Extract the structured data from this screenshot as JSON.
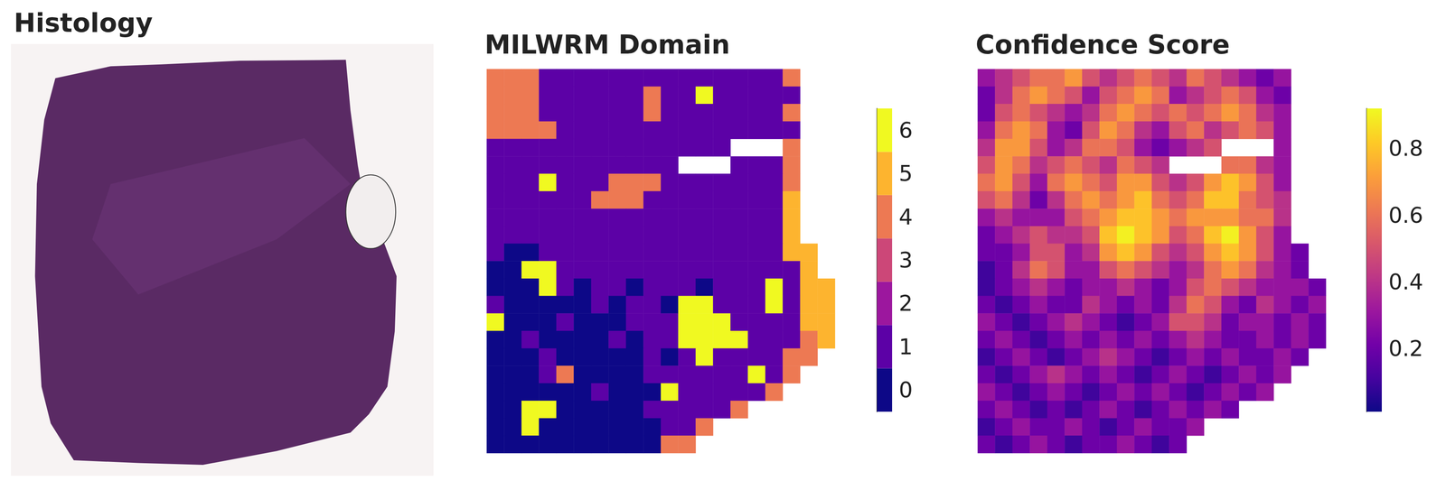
{
  "chart_data": [
    {
      "type": "image",
      "title": "Histology"
    },
    {
      "type": "heatmap",
      "title": "MILWRM Domain",
      "colors": [
        "#0d0887",
        "#5c01a6",
        "#9c179e",
        "#cc4778",
        "#ed7953",
        "#fdb42f",
        "#f0f921"
      ],
      "colorbar": {
        "range": [
          -0.5,
          6.5
        ],
        "ticks": [
          0,
          1,
          2,
          3,
          4,
          5,
          6
        ]
      },
      "cells": [
        [
          4,
          4,
          4,
          1,
          1,
          1,
          1,
          1,
          1,
          1,
          1,
          1,
          1,
          1,
          1,
          1,
          1,
          4,
          null,
          null
        ],
        [
          4,
          4,
          4,
          1,
          1,
          1,
          1,
          1,
          1,
          4,
          1,
          1,
          6,
          1,
          1,
          1,
          1,
          1,
          null,
          null
        ],
        [
          4,
          4,
          4,
          1,
          1,
          1,
          1,
          1,
          1,
          4,
          1,
          1,
          1,
          1,
          1,
          1,
          1,
          4,
          null,
          null
        ],
        [
          4,
          4,
          4,
          4,
          1,
          1,
          1,
          1,
          1,
          1,
          1,
          1,
          1,
          1,
          1,
          1,
          1,
          1,
          null,
          null
        ],
        [
          1,
          1,
          1,
          1,
          1,
          1,
          1,
          1,
          1,
          1,
          1,
          1,
          1,
          1,
          null,
          null,
          null,
          4,
          null,
          null
        ],
        [
          1,
          1,
          1,
          1,
          1,
          1,
          1,
          1,
          1,
          1,
          1,
          null,
          null,
          null,
          1,
          1,
          1,
          4,
          null,
          null
        ],
        [
          1,
          1,
          1,
          6,
          1,
          1,
          1,
          4,
          4,
          4,
          1,
          1,
          1,
          1,
          1,
          1,
          1,
          4,
          null,
          null
        ],
        [
          1,
          1,
          1,
          1,
          1,
          1,
          4,
          4,
          4,
          1,
          1,
          1,
          1,
          1,
          1,
          1,
          1,
          5,
          null,
          null
        ],
        [
          1,
          1,
          1,
          1,
          1,
          1,
          1,
          1,
          1,
          1,
          1,
          1,
          1,
          1,
          1,
          1,
          1,
          5,
          null,
          null
        ],
        [
          1,
          1,
          1,
          1,
          1,
          1,
          1,
          1,
          1,
          1,
          1,
          1,
          1,
          1,
          1,
          1,
          1,
          5,
          null,
          null
        ],
        [
          1,
          0,
          0,
          1,
          1,
          1,
          1,
          1,
          1,
          1,
          1,
          1,
          1,
          1,
          1,
          1,
          1,
          5,
          5,
          null
        ],
        [
          0,
          0,
          6,
          6,
          1,
          1,
          1,
          1,
          1,
          1,
          1,
          1,
          1,
          1,
          1,
          1,
          1,
          1,
          5,
          null
        ],
        [
          0,
          0,
          0,
          6,
          1,
          0,
          1,
          1,
          0,
          1,
          1,
          1,
          0,
          1,
          1,
          1,
          6,
          1,
          5,
          5
        ],
        [
          1,
          0,
          0,
          0,
          0,
          0,
          1,
          0,
          1,
          1,
          0,
          6,
          6,
          1,
          1,
          1,
          6,
          1,
          5,
          5
        ],
        [
          6,
          0,
          0,
          0,
          1,
          0,
          0,
          0,
          1,
          1,
          1,
          6,
          6,
          6,
          1,
          1,
          1,
          1,
          5,
          5
        ],
        [
          0,
          0,
          1,
          0,
          0,
          0,
          0,
          1,
          0,
          1,
          1,
          6,
          6,
          6,
          6,
          1,
          1,
          1,
          4,
          5
        ],
        [
          0,
          0,
          0,
          1,
          0,
          0,
          0,
          0,
          0,
          1,
          0,
          1,
          6,
          1,
          1,
          1,
          1,
          4,
          4,
          null
        ],
        [
          0,
          0,
          0,
          1,
          4,
          0,
          0,
          0,
          0,
          1,
          1,
          1,
          1,
          1,
          1,
          6,
          1,
          4,
          null,
          null
        ],
        [
          0,
          0,
          0,
          0,
          0,
          0,
          1,
          0,
          0,
          0,
          6,
          1,
          1,
          1,
          1,
          1,
          4,
          null,
          null,
          null
        ],
        [
          0,
          0,
          6,
          6,
          0,
          0,
          0,
          0,
          0,
          1,
          1,
          1,
          1,
          1,
          4,
          null,
          null,
          null,
          null,
          null
        ],
        [
          0,
          0,
          6,
          0,
          0,
          0,
          0,
          0,
          0,
          0,
          1,
          1,
          4,
          null,
          null,
          null,
          null,
          null,
          null,
          null
        ],
        [
          0,
          0,
          0,
          0,
          0,
          0,
          0,
          0,
          0,
          0,
          4,
          4,
          null,
          null,
          null,
          null,
          null,
          null,
          null,
          null
        ]
      ]
    },
    {
      "type": "heatmap",
      "title": "Confidence Score",
      "color": "plasma",
      "colorbar": {
        "range": [
          0.01,
          0.92
        ],
        "ticks": [
          0.2,
          0.4,
          0.6,
          0.8
        ]
      },
      "cells": [
        [
          0.3,
          0.4,
          0.5,
          0.6,
          0.6,
          0.7,
          0.5,
          0.4,
          0.5,
          0.6,
          0.5,
          0.4,
          0.6,
          0.5,
          0.4,
          0.3,
          0.2,
          0.3,
          null,
          null
        ],
        [
          0.2,
          0.4,
          0.6,
          0.7,
          0.6,
          0.5,
          0.3,
          0.5,
          0.6,
          0.7,
          0.6,
          0.3,
          0.4,
          0.5,
          0.6,
          0.5,
          0.3,
          0.2,
          null,
          null
        ],
        [
          0.2,
          0.5,
          0.6,
          0.5,
          0.4,
          0.3,
          0.4,
          0.6,
          0.7,
          0.6,
          0.5,
          0.6,
          0.5,
          0.6,
          0.7,
          0.6,
          0.4,
          0.3,
          null,
          null
        ],
        [
          0.3,
          0.6,
          0.7,
          0.6,
          0.3,
          0.2,
          0.5,
          0.7,
          0.6,
          0.4,
          0.3,
          0.5,
          0.6,
          0.4,
          0.5,
          0.6,
          0.5,
          0.3,
          null,
          null
        ],
        [
          0.4,
          0.7,
          0.7,
          0.5,
          0.3,
          0.4,
          0.6,
          0.6,
          0.5,
          0.3,
          0.2,
          0.3,
          0.4,
          0.5,
          null,
          null,
          null,
          0.3,
          null,
          null
        ],
        [
          0.5,
          0.7,
          0.6,
          0.4,
          0.5,
          0.6,
          0.5,
          0.4,
          0.6,
          0.5,
          0.4,
          null,
          null,
          null,
          0.6,
          0.6,
          0.4,
          0.3,
          null,
          null
        ],
        [
          0.6,
          0.7,
          0.5,
          0.3,
          0.6,
          0.7,
          0.6,
          0.5,
          0.7,
          0.7,
          0.5,
          0.4,
          0.5,
          0.7,
          0.8,
          0.7,
          0.5,
          0.3,
          null,
          null
        ],
        [
          0.5,
          0.6,
          0.4,
          0.2,
          0.4,
          0.6,
          0.7,
          0.6,
          0.7,
          0.8,
          0.6,
          0.5,
          0.6,
          0.8,
          0.8,
          0.6,
          0.5,
          0.4,
          null,
          null
        ],
        [
          0.3,
          0.4,
          0.3,
          0.3,
          0.3,
          0.5,
          0.6,
          0.7,
          0.8,
          0.8,
          0.7,
          0.6,
          0.7,
          0.7,
          0.7,
          0.6,
          0.6,
          0.4,
          null,
          null
        ],
        [
          0.2,
          0.3,
          0.4,
          0.5,
          0.4,
          0.4,
          0.5,
          0.8,
          0.9,
          0.8,
          0.7,
          0.5,
          0.6,
          0.8,
          0.9,
          0.7,
          0.5,
          0.3,
          null,
          null
        ],
        [
          0.2,
          0.2,
          0.3,
          0.5,
          0.5,
          0.3,
          0.4,
          0.7,
          0.8,
          0.7,
          0.5,
          0.4,
          0.5,
          0.7,
          0.8,
          0.7,
          0.5,
          0.3,
          0.2,
          null
        ],
        [
          0.1,
          0.2,
          0.4,
          0.6,
          0.5,
          0.3,
          0.3,
          0.5,
          0.6,
          0.5,
          0.4,
          0.3,
          0.4,
          0.6,
          0.7,
          0.6,
          0.4,
          0.3,
          0.2,
          null
        ],
        [
          0.1,
          0.2,
          0.3,
          0.4,
          0.3,
          0.2,
          0.3,
          0.3,
          0.4,
          0.3,
          0.2,
          0.3,
          0.5,
          0.6,
          0.5,
          0.4,
          0.3,
          0.3,
          0.3,
          0.2
        ],
        [
          0.2,
          0.1,
          0.2,
          0.3,
          0.2,
          0.2,
          0.4,
          0.3,
          0.2,
          0.3,
          0.2,
          0.4,
          0.6,
          0.5,
          0.3,
          0.2,
          0.4,
          0.3,
          0.2,
          0.3
        ],
        [
          0.3,
          0.2,
          0.1,
          0.2,
          0.3,
          0.4,
          0.3,
          0.2,
          0.1,
          0.2,
          0.3,
          0.5,
          0.5,
          0.4,
          0.2,
          0.3,
          0.3,
          0.2,
          0.3,
          0.2
        ],
        [
          0.2,
          0.3,
          0.2,
          0.1,
          0.2,
          0.3,
          0.2,
          0.3,
          0.2,
          0.3,
          0.2,
          0.3,
          0.4,
          0.3,
          0.2,
          0.2,
          0.3,
          0.2,
          0.3,
          0.2
        ],
        [
          0.1,
          0.2,
          0.3,
          0.2,
          0.1,
          0.2,
          0.3,
          0.4,
          0.3,
          0.2,
          0.1,
          0.2,
          0.3,
          0.2,
          0.3,
          0.2,
          0.2,
          0.3,
          0.2,
          null
        ],
        [
          0.2,
          0.1,
          0.2,
          0.3,
          0.4,
          0.3,
          0.2,
          0.3,
          0.2,
          0.1,
          0.2,
          0.3,
          0.2,
          0.1,
          0.2,
          0.3,
          0.2,
          0.3,
          null,
          null
        ],
        [
          0.3,
          0.2,
          0.1,
          0.2,
          0.3,
          0.2,
          0.1,
          0.2,
          0.3,
          0.2,
          0.3,
          0.2,
          0.1,
          0.2,
          0.3,
          0.2,
          0.3,
          null,
          null,
          null
        ],
        [
          0.2,
          0.3,
          0.2,
          0.1,
          0.2,
          0.1,
          0.2,
          0.3,
          0.2,
          0.1,
          0.2,
          0.3,
          0.2,
          0.3,
          0.2,
          null,
          null,
          null,
          null,
          null
        ],
        [
          0.1,
          0.2,
          0.3,
          0.2,
          0.2,
          0.3,
          0.2,
          0.1,
          0.2,
          0.3,
          0.2,
          0.2,
          0.3,
          null,
          null,
          null,
          null,
          null,
          null,
          null
        ],
        [
          0.2,
          0.1,
          0.2,
          0.3,
          0.2,
          0.1,
          0.2,
          0.2,
          0.3,
          0.2,
          0.1,
          0.2,
          null,
          null,
          null,
          null,
          null,
          null,
          null,
          null
        ]
      ]
    }
  ]
}
